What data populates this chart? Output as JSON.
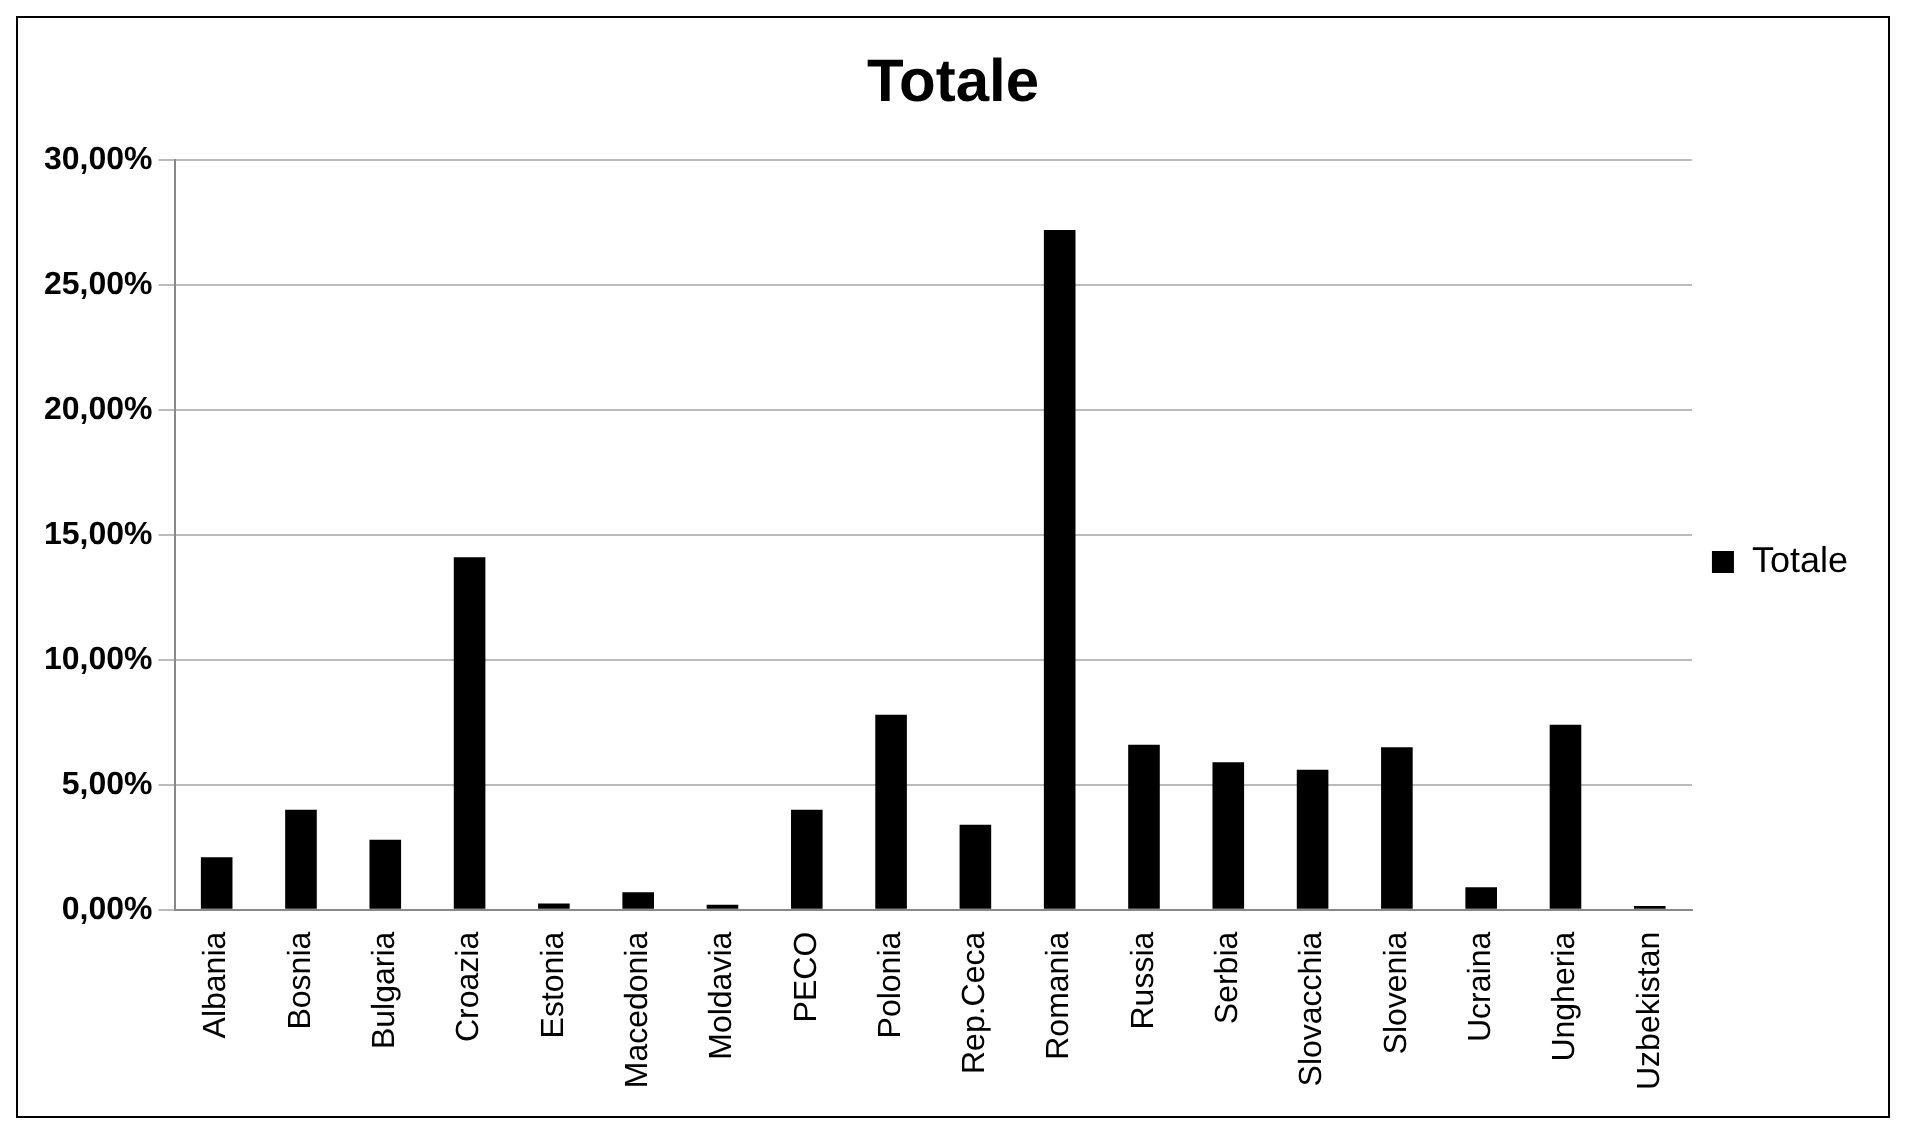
{
  "chart_data": {
    "type": "bar",
    "title": "Totale",
    "categories": [
      "Albania",
      "Bosnia",
      "Bulgaria",
      "Croazia",
      "Estonia",
      "Macedonia",
      "Moldavia",
      "PECO",
      "Polonia",
      "Rep.Ceca",
      "Romania",
      "Russia",
      "Serbia",
      "Slovacchia",
      "Slovenia",
      "Ucraina",
      "Ungheria",
      "Uzbekistan"
    ],
    "series": [
      {
        "name": "Totale",
        "color": "#000000",
        "values": [
          2.1,
          4.0,
          2.8,
          14.1,
          0.25,
          0.7,
          0.2,
          4.0,
          7.8,
          3.4,
          27.2,
          6.6,
          5.9,
          5.6,
          6.5,
          0.9,
          7.4,
          0.15
        ]
      }
    ],
    "ylim": [
      0,
      30
    ],
    "yticks": [
      {
        "value": 0,
        "label": "0,00%"
      },
      {
        "value": 5,
        "label": "5,00%"
      },
      {
        "value": 10,
        "label": "10,00%"
      },
      {
        "value": 15,
        "label": "15,00%"
      },
      {
        "value": 20,
        "label": "20,00%"
      },
      {
        "value": 25,
        "label": "25,00%"
      },
      {
        "value": 30,
        "label": "30,00%"
      }
    ],
    "grid": "y",
    "legend": "right"
  }
}
